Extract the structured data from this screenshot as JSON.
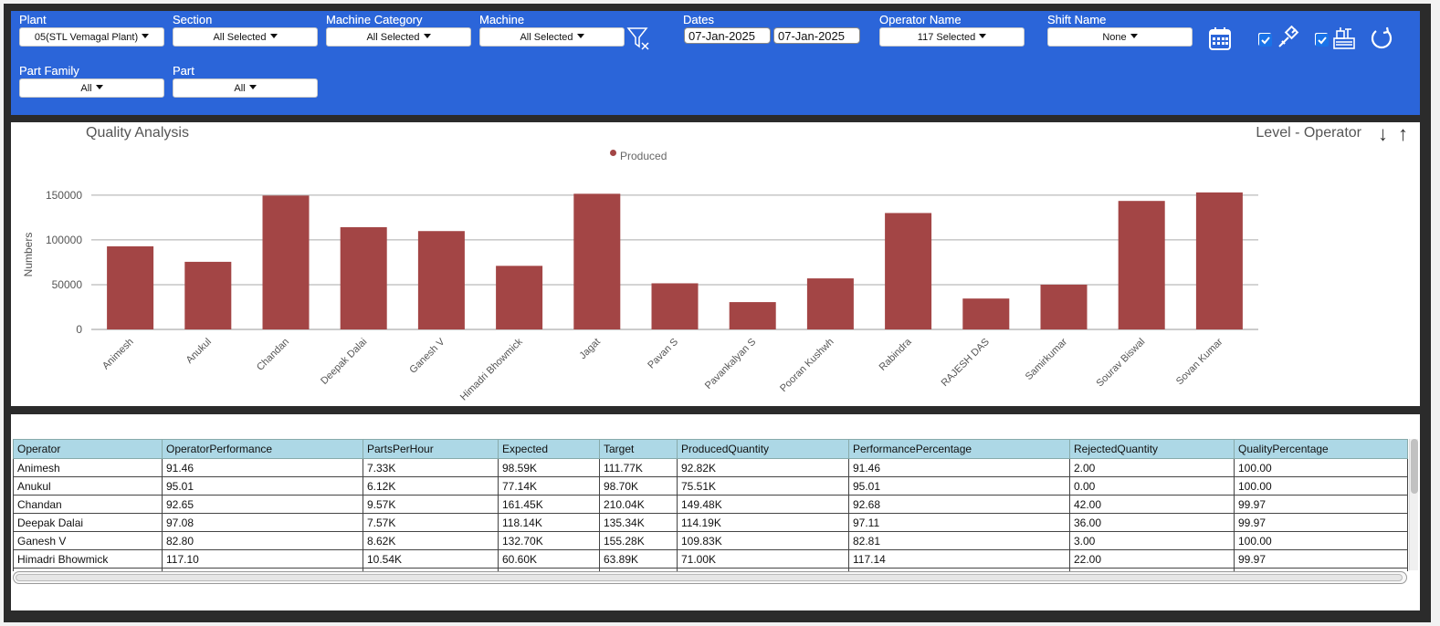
{
  "filters": {
    "plant": {
      "label": "Plant",
      "value": "05(STL Vemagal Plant)"
    },
    "section": {
      "label": "Section",
      "value": "All Selected"
    },
    "machine_category": {
      "label": "Machine Category",
      "value": "All Selected"
    },
    "machine": {
      "label": "Machine",
      "value": "All Selected"
    },
    "dates": {
      "label": "Dates",
      "from": "07-Jan-2025",
      "to": "07-Jan-2025"
    },
    "operator_name": {
      "label": "Operator Name",
      "value": "117 Selected"
    },
    "shift_name": {
      "label": "Shift Name",
      "value": "None"
    },
    "part_family": {
      "label": "Part Family",
      "value": "All"
    },
    "part": {
      "label": "Part",
      "value": "All"
    },
    "icons": [
      "filter-clear-icon",
      "calendar-icon",
      "checkbox-checked",
      "piston-icon",
      "checkbox-checked",
      "machine-icon",
      "refresh-icon"
    ]
  },
  "chart": {
    "title": "Quality Analysis",
    "level": "Level - Operator",
    "legend": "Produced",
    "ylabel": "Numbers",
    "yticks": [
      "0",
      "50000",
      "100000",
      "150000"
    ],
    "bar_color": "#a34545"
  },
  "chart_data": {
    "type": "bar",
    "title": "Quality Analysis",
    "xlabel": "",
    "ylabel": "Numbers",
    "ylim": [
      0,
      160000
    ],
    "grid": true,
    "legend_position": "top-center",
    "categories": [
      "Animesh",
      "Anukul",
      "Chandan",
      "Deepak Dalai",
      "Ganesh V",
      "Himadri Bhowmick",
      "Jagat",
      "Pavan S",
      "Pavankalyan S",
      "Pooran Kushwh",
      "Rabindra",
      "RAJESH DAS",
      "Samirkumar",
      "Sourav Biswal",
      "Sovan Kumar"
    ],
    "series": [
      {
        "name": "Produced",
        "values": [
          92820,
          75510,
          149480,
          114190,
          109830,
          71000,
          151500,
          51500,
          30500,
          57000,
          130000,
          34500,
          50000,
          143500,
          153000
        ]
      }
    ]
  },
  "table": {
    "columns": [
      "Operator",
      "OperatorPerformance",
      "PartsPerHour",
      "Expected",
      "Target",
      "ProducedQuantity",
      "PerformancePercentage",
      "RejectedQuantity",
      "QualityPercentage"
    ],
    "rows": [
      [
        "Animesh",
        "91.46",
        "7.33K",
        "98.59K",
        "111.77K",
        "92.82K",
        "91.46",
        "2.00",
        "100.00"
      ],
      [
        "Anukul",
        "95.01",
        "6.12K",
        "77.14K",
        "98.70K",
        "75.51K",
        "95.01",
        "0.00",
        "100.00"
      ],
      [
        "Chandan",
        "92.65",
        "9.57K",
        "161.45K",
        "210.04K",
        "149.48K",
        "92.68",
        "42.00",
        "99.97"
      ],
      [
        "Deepak Dalai",
        "97.08",
        "7.57K",
        "118.14K",
        "135.34K",
        "114.19K",
        "97.11",
        "36.00",
        "99.97"
      ],
      [
        "Ganesh V",
        "82.80",
        "8.62K",
        "132.70K",
        "155.28K",
        "109.83K",
        "82.81",
        "3.00",
        "100.00"
      ],
      [
        "Himadri Bhowmick",
        "117.10",
        "10.54K",
        "60.60K",
        "63.89K",
        "71.00K",
        "117.14",
        "22.00",
        "99.97"
      ]
    ]
  }
}
